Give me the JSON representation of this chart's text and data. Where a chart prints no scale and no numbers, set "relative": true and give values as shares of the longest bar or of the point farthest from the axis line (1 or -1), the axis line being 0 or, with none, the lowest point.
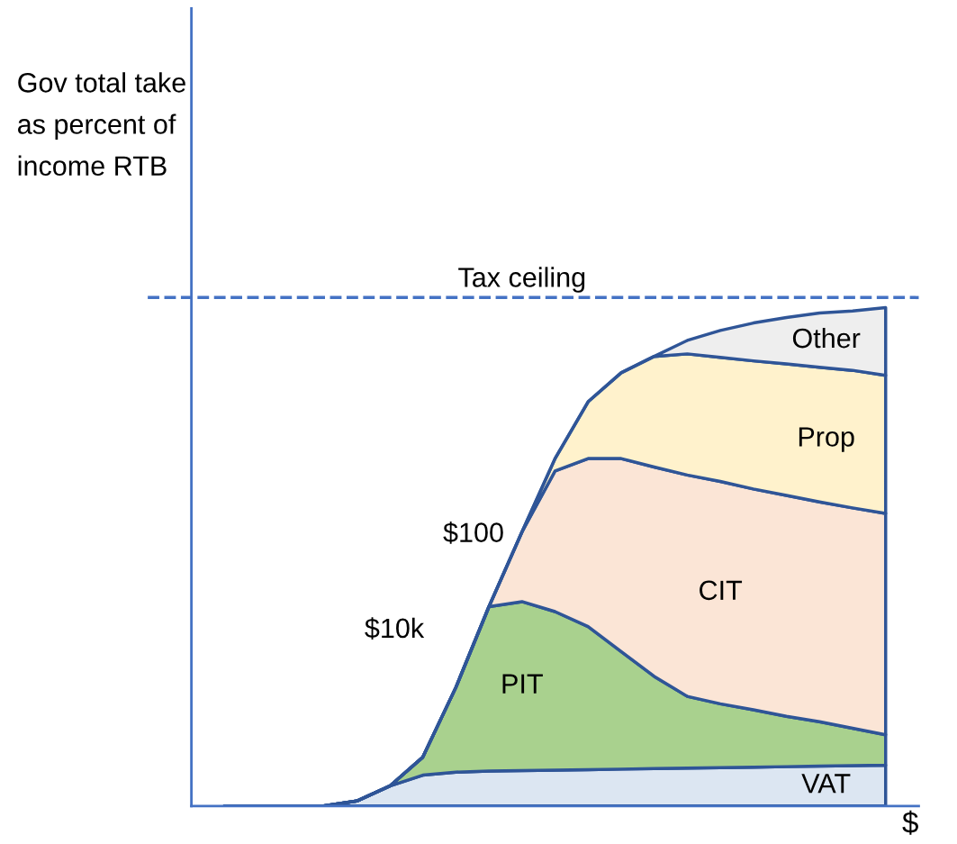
{
  "chart_data": {
    "type": "area",
    "stacked": true,
    "relative": true,
    "legend": false,
    "xlabel": "$",
    "categories": [
      null,
      null,
      null,
      null,
      null,
      null,
      null,
      null,
      null,
      null,
      null,
      null,
      null,
      null,
      null,
      null,
      null,
      null,
      null,
      null,
      null
    ],
    "series": [
      {
        "name": "VAT",
        "color": "#dce6f2",
        "values": [
          0,
          0,
          0,
          0,
          0.01,
          0.04,
          0.062,
          0.068,
          0.07,
          0.071,
          0.072,
          0.073,
          0.074,
          0.075,
          0.076,
          0.077,
          0.078,
          0.079,
          0.08,
          0.081,
          0.082
        ]
      },
      {
        "name": "PIT",
        "color": "#a9d18e",
        "values": [
          0,
          0,
          0,
          0,
          0,
          0,
          0.036,
          0.17,
          0.33,
          0.339,
          0.318,
          0.287,
          0.236,
          0.185,
          0.144,
          0.128,
          0.115,
          0.101,
          0.089,
          0.075,
          0.061
        ]
      },
      {
        "name": "CIT",
        "color": "#fbe5d6",
        "values": [
          0,
          0,
          0,
          0,
          0,
          0,
          0,
          0,
          0,
          0.14,
          0.282,
          0.337,
          0.387,
          0.42,
          0.444,
          0.446,
          0.443,
          0.443,
          0.441,
          0.442,
          0.444
        ]
      },
      {
        "name": "Prop",
        "color": "#fff2cc",
        "values": [
          0,
          0,
          0,
          0,
          0,
          0,
          0,
          0,
          0,
          0,
          0.025,
          0.114,
          0.172,
          0.222,
          0.243,
          0.249,
          0.257,
          0.264,
          0.27,
          0.276,
          0.277
        ]
      },
      {
        "name": "Other",
        "color": "#eeeeee",
        "values": [
          0,
          0,
          0,
          0,
          0,
          0,
          0,
          0,
          0,
          0,
          0,
          0,
          0,
          0,
          0.027,
          0.054,
          0.076,
          0.093,
          0.109,
          0.119,
          0.136
        ]
      }
    ],
    "ref_lines": [
      {
        "axis": "y",
        "value": 1.02,
        "label": "Tax ceiling",
        "color": "#4472c4",
        "line_style": "dashed"
      }
    ],
    "annotations": [
      "Gov total take\nas percent of\nincome RTB",
      "$10k",
      "$100"
    ]
  }
}
